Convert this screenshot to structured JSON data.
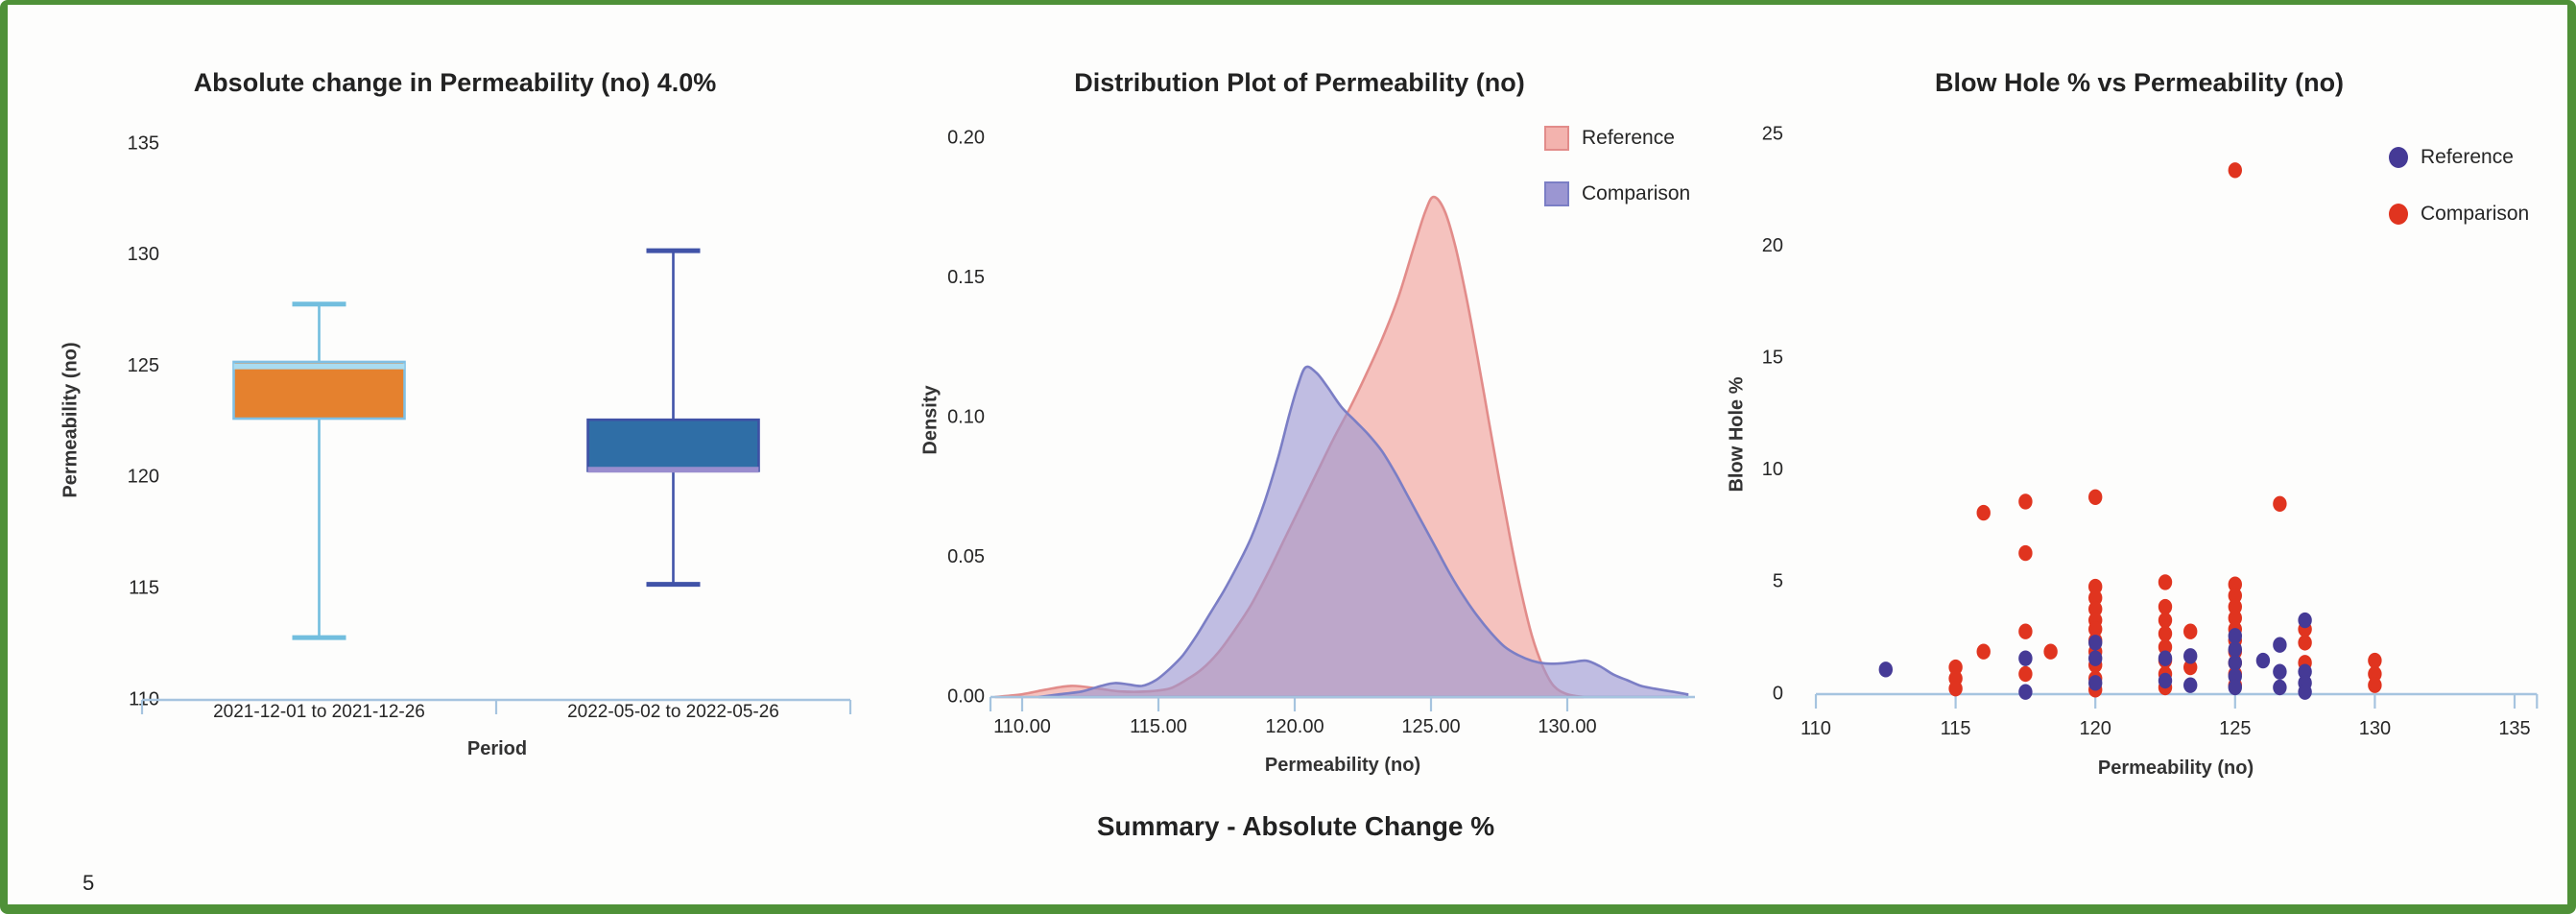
{
  "page": {
    "page_number": "5",
    "border_color": "#4f9138",
    "background": "#fdfdfc",
    "axis_color": "#a6c4df",
    "text_color": "#262626"
  },
  "summary": {
    "label": "Summary - Absolute Change %"
  },
  "chart_data": [
    {
      "type": "box",
      "title": "Absolute change in Permeability (no) 4.0%",
      "xlabel": "Period",
      "ylabel": "Permeability (no)",
      "ylim": [
        110,
        135
      ],
      "yticks": [
        {
          "v": 110,
          "label": "110"
        },
        {
          "v": 115,
          "label": "115"
        },
        {
          "v": 120,
          "label": "120"
        },
        {
          "v": 125,
          "label": "125"
        },
        {
          "v": 130,
          "label": "130"
        },
        {
          "v": 135,
          "label": "135"
        }
      ],
      "boxes": [
        {
          "label": "2021-12-01 to 2021-12-26",
          "whisker_low": 112.8,
          "q1": 122.65,
          "median": 125.0,
          "q3": 125.2,
          "whisker_high": 127.8,
          "fill": "#e5812e",
          "border": "#7fc0e4",
          "whisker_color": "#72bede",
          "median_color": "#a9dcf0"
        },
        {
          "label": "2022-05-02 to 2022-05-26",
          "whisker_low": 115.2,
          "q1": 120.3,
          "median": 120.35,
          "q3": 122.6,
          "whisker_high": 130.2,
          "fill": "#2f6ea6",
          "border": "#3f51a5",
          "whisker_color": "#4153a8",
          "median_color": "#998dce"
        }
      ]
    },
    {
      "type": "area",
      "title": "Distribution Plot of Permeability (no)",
      "xlabel": "Permeability (no)",
      "ylabel": "Density",
      "xlim": [
        108.8,
        134.7
      ],
      "ylim": [
        0,
        0.205
      ],
      "xticks": [
        {
          "v": 110,
          "label": "110.00"
        },
        {
          "v": 115,
          "label": "115.00"
        },
        {
          "v": 120,
          "label": "120.00"
        },
        {
          "v": 125,
          "label": "125.00"
        },
        {
          "v": 130,
          "label": "130.00"
        }
      ],
      "yticks": [
        {
          "v": 0.0,
          "label": "0.00"
        },
        {
          "v": 0.05,
          "label": "0.05"
        },
        {
          "v": 0.1,
          "label": "0.10"
        },
        {
          "v": 0.15,
          "label": "0.15"
        },
        {
          "v": 0.2,
          "label": "0.20"
        }
      ],
      "legend_position": "top-right",
      "series": [
        {
          "name": "Reference",
          "fill": "#f3b3ae",
          "stroke": "#e28c8a",
          "fill_opacity": 0.8,
          "peak": {
            "x": 125.1,
            "y": 0.179
          },
          "points": [
            [
              109.0,
              0.0
            ],
            [
              110.0,
              0.001
            ],
            [
              110.8,
              0.0025
            ],
            [
              111.8,
              0.004
            ],
            [
              112.8,
              0.003
            ],
            [
              113.6,
              0.002
            ],
            [
              114.6,
              0.002
            ],
            [
              115.4,
              0.003
            ],
            [
              116.0,
              0.006
            ],
            [
              116.6,
              0.01
            ],
            [
              117.2,
              0.016
            ],
            [
              117.8,
              0.024
            ],
            [
              118.4,
              0.033
            ],
            [
              119.0,
              0.044
            ],
            [
              119.6,
              0.056
            ],
            [
              120.2,
              0.068
            ],
            [
              120.8,
              0.08
            ],
            [
              121.4,
              0.092
            ],
            [
              122.0,
              0.103
            ],
            [
              122.6,
              0.115
            ],
            [
              123.2,
              0.128
            ],
            [
              123.8,
              0.143
            ],
            [
              124.4,
              0.162
            ],
            [
              124.8,
              0.174
            ],
            [
              125.1,
              0.179
            ],
            [
              125.5,
              0.174
            ],
            [
              125.9,
              0.161
            ],
            [
              126.3,
              0.143
            ],
            [
              126.7,
              0.122
            ],
            [
              127.1,
              0.1
            ],
            [
              127.5,
              0.078
            ],
            [
              127.9,
              0.057
            ],
            [
              128.3,
              0.038
            ],
            [
              128.7,
              0.022
            ],
            [
              129.1,
              0.011
            ],
            [
              129.5,
              0.004
            ],
            [
              130.0,
              0.001
            ],
            [
              130.6,
              0.0
            ]
          ]
        },
        {
          "name": "Comparison",
          "fill": "#9b96d2",
          "stroke": "#7b7ec5",
          "fill_opacity": 0.62,
          "peak": {
            "x": 120.4,
            "y": 0.118
          },
          "points": [
            [
              110.6,
              0.0
            ],
            [
              111.4,
              0.001
            ],
            [
              112.2,
              0.002
            ],
            [
              112.9,
              0.004
            ],
            [
              113.4,
              0.005
            ],
            [
              113.9,
              0.0045
            ],
            [
              114.4,
              0.004
            ],
            [
              114.9,
              0.006
            ],
            [
              115.4,
              0.01
            ],
            [
              115.9,
              0.015
            ],
            [
              116.4,
              0.022
            ],
            [
              116.9,
              0.03
            ],
            [
              117.4,
              0.038
            ],
            [
              117.9,
              0.047
            ],
            [
              118.4,
              0.057
            ],
            [
              118.9,
              0.07
            ],
            [
              119.4,
              0.086
            ],
            [
              119.8,
              0.101
            ],
            [
              120.1,
              0.111
            ],
            [
              120.4,
              0.118
            ],
            [
              120.8,
              0.116
            ],
            [
              121.2,
              0.111
            ],
            [
              121.7,
              0.104
            ],
            [
              122.2,
              0.099
            ],
            [
              122.7,
              0.094
            ],
            [
              123.2,
              0.088
            ],
            [
              123.7,
              0.08
            ],
            [
              124.2,
              0.071
            ],
            [
              124.7,
              0.062
            ],
            [
              125.2,
              0.053
            ],
            [
              125.7,
              0.044
            ],
            [
              126.2,
              0.036
            ],
            [
              126.7,
              0.029
            ],
            [
              127.2,
              0.023
            ],
            [
              127.7,
              0.018
            ],
            [
              128.2,
              0.015
            ],
            [
              128.7,
              0.013
            ],
            [
              129.2,
              0.012
            ],
            [
              129.7,
              0.012
            ],
            [
              130.2,
              0.0125
            ],
            [
              130.7,
              0.013
            ],
            [
              131.2,
              0.011
            ],
            [
              131.7,
              0.008
            ],
            [
              132.2,
              0.006
            ],
            [
              132.7,
              0.004
            ],
            [
              133.2,
              0.003
            ],
            [
              133.8,
              0.002
            ],
            [
              134.4,
              0.001
            ]
          ]
        }
      ]
    },
    {
      "type": "scatter",
      "title": "Blow Hole % vs Permeability (no)",
      "xlabel": "Permeability (no)",
      "ylabel": "Blow Hole %",
      "xlim": [
        110,
        135.8
      ],
      "ylim": [
        0,
        25.5
      ],
      "xticks": [
        {
          "v": 110,
          "label": "110"
        },
        {
          "v": 115,
          "label": "115"
        },
        {
          "v": 120,
          "label": "120"
        },
        {
          "v": 125,
          "label": "125"
        },
        {
          "v": 130,
          "label": "130"
        },
        {
          "v": 135,
          "label": "135"
        }
      ],
      "yticks": [
        {
          "v": 0,
          "label": "0"
        },
        {
          "v": 5,
          "label": "5"
        },
        {
          "v": 10,
          "label": "10"
        },
        {
          "v": 15,
          "label": "15"
        },
        {
          "v": 20,
          "label": "20"
        },
        {
          "v": 25,
          "label": "25"
        }
      ],
      "legend_position": "top-right",
      "series": [
        {
          "name": "Comparison",
          "color": "#e0341f",
          "points": [
            [
              115,
              1.2
            ],
            [
              115,
              0.7
            ],
            [
              115,
              0.25
            ],
            [
              116,
              8.1
            ],
            [
              116,
              1.9
            ],
            [
              117.5,
              8.6
            ],
            [
              117.5,
              6.3
            ],
            [
              117.5,
              2.8
            ],
            [
              117.5,
              0.9
            ],
            [
              118.4,
              1.9
            ],
            [
              120,
              8.8
            ],
            [
              120,
              4.8
            ],
            [
              120,
              4.3
            ],
            [
              120,
              3.8
            ],
            [
              120,
              3.3
            ],
            [
              120,
              2.9
            ],
            [
              120,
              2.4
            ],
            [
              120,
              1.9
            ],
            [
              120,
              1.3
            ],
            [
              120,
              0.7
            ],
            [
              120,
              0.2
            ],
            [
              122.5,
              5.0
            ],
            [
              122.5,
              3.9
            ],
            [
              122.5,
              3.3
            ],
            [
              122.5,
              2.7
            ],
            [
              122.5,
              2.1
            ],
            [
              122.5,
              1.5
            ],
            [
              122.5,
              0.9
            ],
            [
              122.5,
              0.3
            ],
            [
              123.4,
              2.8
            ],
            [
              123.4,
              1.2
            ],
            [
              125,
              23.4
            ],
            [
              125,
              4.9
            ],
            [
              125,
              4.4
            ],
            [
              125,
              3.9
            ],
            [
              125,
              3.4
            ],
            [
              125,
              2.9
            ],
            [
              125,
              2.4
            ],
            [
              125,
              1.9
            ],
            [
              125,
              1.4
            ],
            [
              125,
              0.9
            ],
            [
              125,
              0.4
            ],
            [
              126.6,
              8.5
            ],
            [
              127.5,
              2.9
            ],
            [
              127.5,
              2.3
            ],
            [
              127.5,
              1.4
            ],
            [
              130,
              1.5
            ],
            [
              130,
              0.9
            ],
            [
              130,
              0.4
            ]
          ]
        },
        {
          "name": "Reference",
          "color": "#453a96",
          "points": [
            [
              112.5,
              1.1
            ],
            [
              117.5,
              1.6
            ],
            [
              117.5,
              0.1
            ],
            [
              120,
              2.3
            ],
            [
              120,
              1.6
            ],
            [
              120,
              0.5
            ],
            [
              122.5,
              1.6
            ],
            [
              122.5,
              0.6
            ],
            [
              123.4,
              1.7
            ],
            [
              123.4,
              0.4
            ],
            [
              125,
              2.6
            ],
            [
              125,
              2.0
            ],
            [
              125,
              1.4
            ],
            [
              125,
              0.8
            ],
            [
              125,
              0.3
            ],
            [
              126,
              1.5
            ],
            [
              126.6,
              2.2
            ],
            [
              126.6,
              1.0
            ],
            [
              126.6,
              0.3
            ],
            [
              127.5,
              3.3
            ],
            [
              127.5,
              1.0
            ],
            [
              127.5,
              0.5
            ],
            [
              127.5,
              0.1
            ]
          ]
        }
      ]
    }
  ]
}
